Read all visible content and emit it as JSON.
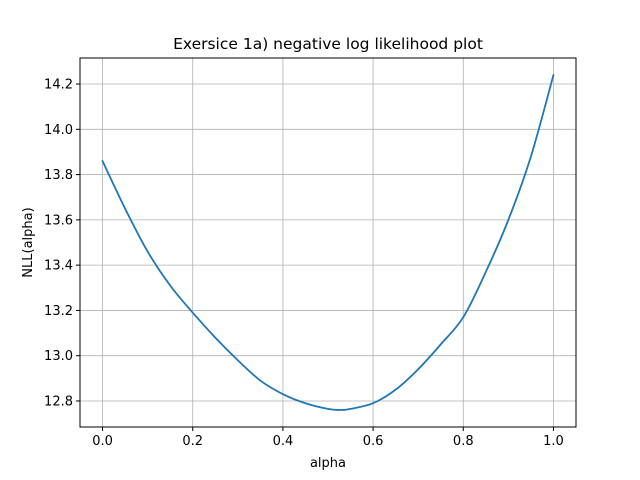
{
  "chart_data": {
    "type": "line",
    "title": "Exersice 1a) negative log likelihood plot",
    "xlabel": "alpha",
    "ylabel": "NLL(alpha)",
    "xlim": [
      -0.05,
      1.05
    ],
    "ylim": [
      12.685,
      14.315
    ],
    "x_ticks": [
      0.0,
      0.2,
      0.4,
      0.6,
      0.8,
      1.0
    ],
    "x_tick_labels": [
      "0.0",
      "0.2",
      "0.4",
      "0.6",
      "0.8",
      "1.0"
    ],
    "y_ticks": [
      12.8,
      13.0,
      13.2,
      13.4,
      13.6,
      13.8,
      14.0,
      14.2
    ],
    "y_tick_labels": [
      "12.8",
      "13.0",
      "13.2",
      "13.4",
      "13.6",
      "13.8",
      "14.0",
      "14.2"
    ],
    "grid": true,
    "line_color": "#1f77b4",
    "series": [
      {
        "x": [
          0.0,
          0.05,
          0.1,
          0.15,
          0.2,
          0.25,
          0.3,
          0.35,
          0.4,
          0.45,
          0.5,
          0.53,
          0.55,
          0.6,
          0.65,
          0.7,
          0.75,
          0.8,
          0.85,
          0.9,
          0.95,
          1.0
        ],
        "values": [
          13.86,
          13.65,
          13.46,
          13.31,
          13.19,
          13.08,
          12.98,
          12.89,
          12.83,
          12.79,
          12.765,
          12.76,
          12.765,
          12.79,
          12.85,
          12.94,
          13.05,
          13.17,
          13.37,
          13.6,
          13.88,
          14.24
        ]
      }
    ]
  }
}
